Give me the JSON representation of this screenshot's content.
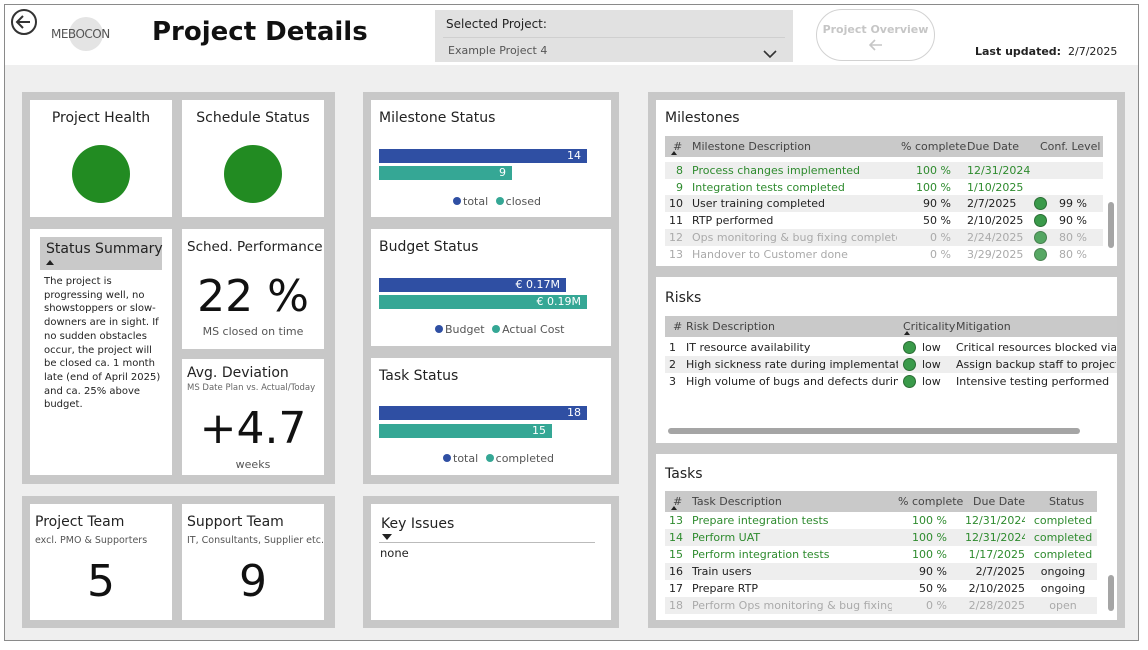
{
  "header": {
    "logo": "MEBOCON",
    "page_title": "Project Details",
    "selected_label": "Selected Project:",
    "selected_value": "Example Project 4",
    "overview_button": "Project Overview",
    "last_updated_label": "Last updated:",
    "last_updated_value": "2/7/2025"
  },
  "health": {
    "title": "Project Health",
    "color": "#228b22"
  },
  "schedule": {
    "title": "Schedule Status",
    "color": "#228b22"
  },
  "summary": {
    "title": "Status Summary",
    "text": "The project is progressing well, no showstoppers or slow-downers are in sight. If no sudden obstacles occur, the project will be closed ca. 1 month late (end of April 2025) and ca. 25% above budget."
  },
  "sched_perf": {
    "title": "Sched. Performance",
    "value": "22 %",
    "caption": "MS closed on time"
  },
  "avg_dev": {
    "title": "Avg. Deviation",
    "subtitle": "MS Date Plan vs. Actual/Today",
    "value": "+4.7",
    "caption": "weeks"
  },
  "team": {
    "title": "Project Team",
    "subtitle": "excl. PMO & Supporters",
    "value": "5"
  },
  "support": {
    "title": "Support Team",
    "subtitle": "IT, Consultants, Supplier etc.",
    "value": "9"
  },
  "milestone_status": {
    "title": "Milestone Status",
    "bar1": "14",
    "bar2": "9",
    "legend1": "total",
    "legend2": "closed",
    "fill1": 1.0,
    "fill2": 0.64
  },
  "budget_status": {
    "title": "Budget Status",
    "bar1": "€ 0.17M",
    "bar2": "€ 0.19M",
    "legend1": "Budget",
    "legend2": "Actual Cost",
    "fill1": 0.9,
    "fill2": 1.0
  },
  "task_status": {
    "title": "Task Status",
    "bar1": "18",
    "bar2": "15",
    "legend1": "total",
    "legend2": "completed",
    "fill1": 1.0,
    "fill2": 0.83
  },
  "colors": {
    "blue": "#2f4fa3",
    "teal": "#35a795",
    "green_text": "#2e8b2e"
  },
  "key_issues": {
    "title": "Key Issues",
    "value": "none"
  },
  "milestones": {
    "title": "Milestones",
    "headers": [
      "#",
      "Milestone Description",
      "% complete",
      "Due Date",
      "Conf. Level"
    ],
    "rows": [
      {
        "n": "8",
        "desc": "Process changes implemented",
        "pct": "100 %",
        "due": "12/31/2024",
        "conf": "",
        "style": "green"
      },
      {
        "n": "9",
        "desc": "Integration tests completed",
        "pct": "100 %",
        "due": "1/10/2025",
        "conf": "",
        "style": "green"
      },
      {
        "n": "10",
        "desc": "User training completed",
        "pct": "90 %",
        "due": "2/7/2025",
        "conf": "99 %",
        "style": "normal"
      },
      {
        "n": "11",
        "desc": "RTP performed",
        "pct": "50 %",
        "due": "2/10/2025",
        "conf": "90 %",
        "style": "normal"
      },
      {
        "n": "12",
        "desc": "Ops monitoring & bug fixing completed",
        "pct": "0 %",
        "due": "2/24/2025",
        "conf": "80 %",
        "style": "grey"
      },
      {
        "n": "13",
        "desc": "Handover to Customer done",
        "pct": "0 %",
        "due": "3/29/2025",
        "conf": "80 %",
        "style": "grey"
      }
    ]
  },
  "risks": {
    "title": "Risks",
    "headers": [
      "#",
      "Risk Description",
      "Criticality",
      "Mitigation"
    ],
    "rows": [
      {
        "n": "1",
        "desc": "IT resource availability",
        "crit": "low",
        "mit": "Critical resources blocked via Top"
      },
      {
        "n": "2",
        "desc": "High sickness rate during implementation ...",
        "crit": "low",
        "mit": "Assign backup staff to project"
      },
      {
        "n": "3",
        "desc": "High volume of bugs and defects during O...",
        "crit": "low",
        "mit": "Intensive testing performed"
      }
    ]
  },
  "tasks": {
    "title": "Tasks",
    "headers": [
      "#",
      "Task Description",
      "% complete",
      "Due Date",
      "Status"
    ],
    "rows": [
      {
        "n": "13",
        "desc": "Prepare integration tests",
        "pct": "100 %",
        "due": "12/31/2024",
        "status": "completed",
        "style": "green"
      },
      {
        "n": "14",
        "desc": "Perform UAT",
        "pct": "100 %",
        "due": "12/31/2024",
        "status": "completed",
        "style": "green"
      },
      {
        "n": "15",
        "desc": "Perform integration tests",
        "pct": "100 %",
        "due": "1/17/2025",
        "status": "completed",
        "style": "green"
      },
      {
        "n": "16",
        "desc": "Train users",
        "pct": "90 %",
        "due": "2/7/2025",
        "status": "ongoing",
        "style": "normal"
      },
      {
        "n": "17",
        "desc": "Prepare RTP",
        "pct": "50 %",
        "due": "2/10/2025",
        "status": "ongoing",
        "style": "normal"
      },
      {
        "n": "18",
        "desc": "Perform Ops monitoring & bug fixing",
        "pct": "0 %",
        "due": "2/28/2025",
        "status": "open",
        "style": "grey"
      }
    ]
  }
}
